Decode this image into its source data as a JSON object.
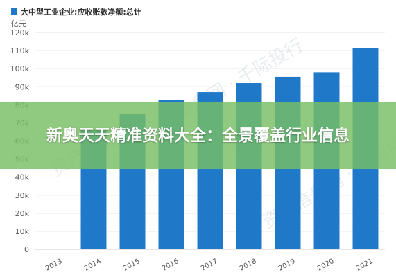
{
  "chart_data": {
    "type": "bar",
    "title": "大中型工业企业:应收账款净额:总计",
    "legend_color": "#1f78c8",
    "ylabel": "亿元",
    "categories": [
      "2013",
      "2014",
      "2015",
      "2016",
      "2017",
      "2018",
      "2019",
      "2020",
      "2021"
    ],
    "values": [
      null,
      66000,
      75000,
      82500,
      87000,
      92000,
      95500,
      98000,
      111500
    ],
    "yticks": [
      "0",
      "10k",
      "20k",
      "30k",
      "40k",
      "50k",
      "60k",
      "70k",
      "80k",
      "90k",
      "100k",
      "110k",
      "120k"
    ],
    "ylim": [
      0,
      120000
    ],
    "bar_color": "#1f78c8",
    "grid": true
  },
  "banner": {
    "text": "新奥天天精准资料大全：全景覆盖行业信息",
    "color": "#78be64"
  },
  "watermark": {
    "texts": [
      "资产信息网",
      "资产信息网 · 千际投行",
      "资产信息网 · 千际投行"
    ]
  }
}
